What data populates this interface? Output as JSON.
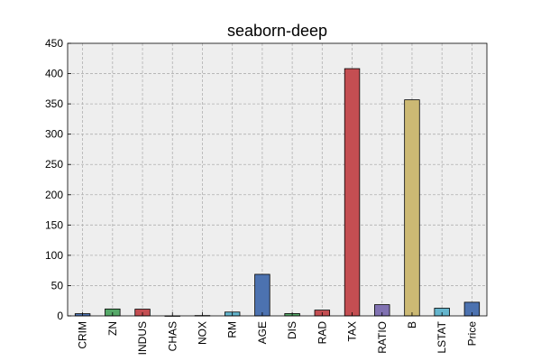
{
  "chart_data": {
    "type": "bar",
    "title": "seaborn-deep",
    "xlabel": "",
    "ylabel": "",
    "categories": [
      "CRIM",
      "ZN",
      "INDUS",
      "CHAS",
      "NOX",
      "RM",
      "AGE",
      "DIS",
      "RAD",
      "TAX",
      "RATIO",
      "B",
      "LSTAT",
      "Price"
    ],
    "values": [
      3.6,
      11.4,
      11.1,
      0.07,
      0.55,
      6.3,
      68.6,
      3.8,
      9.5,
      408.2,
      18.5,
      356.7,
      12.7,
      22.5
    ],
    "colors": [
      "#4C72B0",
      "#55A868",
      "#C44E52",
      "#8172B2",
      "#CCB974",
      "#64B5CD",
      "#4C72B0",
      "#55A868",
      "#C44E52",
      "#C44E52",
      "#8172B2",
      "#CCB974",
      "#64B5CD",
      "#4C72B0"
    ],
    "ylim": [
      0,
      450
    ],
    "yticks": [
      0,
      50,
      100,
      150,
      200,
      250,
      300,
      350,
      400,
      450
    ],
    "grid": true,
    "legend": "none",
    "background_color": "#EEEEEE"
  }
}
